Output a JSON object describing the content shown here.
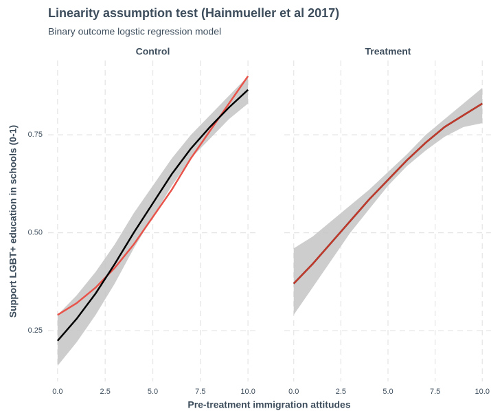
{
  "title": "Linearity assumption test (Hainmueller et al 2017)",
  "subtitle": "Binary outcome logstic regression model",
  "xlabel": "Pre-treatment immigration attitudes",
  "ylabel": "Support LGBT+ education in schools (0-1)",
  "chart_data": [
    {
      "type": "line",
      "title": "Control",
      "x": [
        0,
        1,
        2,
        3,
        4,
        5,
        6,
        7,
        8,
        9,
        10
      ],
      "band": {
        "color": "#c4c4c4",
        "lower": [
          0.16,
          0.22,
          0.29,
          0.37,
          0.46,
          0.54,
          0.62,
          0.69,
          0.74,
          0.79,
          0.83
        ],
        "upper": [
          0.29,
          0.34,
          0.4,
          0.47,
          0.55,
          0.62,
          0.69,
          0.75,
          0.8,
          0.85,
          0.9
        ]
      },
      "series": [
        {
          "color": "#e8534a",
          "values": [
            0.29,
            0.32,
            0.36,
            0.41,
            0.47,
            0.54,
            0.61,
            0.69,
            0.76,
            0.83,
            0.9
          ]
        },
        {
          "color": "#000000",
          "values": [
            0.224,
            0.28,
            0.345,
            0.42,
            0.5,
            0.575,
            0.65,
            0.715,
            0.77,
            0.82,
            0.865
          ]
        }
      ],
      "xlim": [
        -0.5,
        10.5
      ],
      "xticks": [
        {
          "value": 0,
          "label": "0.0"
        },
        2.5,
        {
          "value": 5,
          "label": "5.0"
        },
        7.5,
        {
          "value": 10,
          "label": "10.0"
        }
      ],
      "ylim": [
        0.12,
        0.94
      ],
      "yticks": [
        0.25,
        {
          "value": 0.5,
          "label": "0.50"
        },
        0.75
      ],
      "grid": true
    },
    {
      "type": "line",
      "title": "Treatment",
      "x": [
        0,
        1,
        2,
        3,
        4,
        5,
        6,
        7,
        8,
        9,
        10
      ],
      "band": {
        "color": "#c4c4c4",
        "lower": [
          0.29,
          0.36,
          0.43,
          0.5,
          0.56,
          0.62,
          0.67,
          0.71,
          0.745,
          0.77,
          0.78
        ],
        "upper": [
          0.46,
          0.49,
          0.53,
          0.57,
          0.61,
          0.655,
          0.7,
          0.75,
          0.79,
          0.83,
          0.87
        ]
      },
      "series": [
        {
          "color": "#000000",
          "values": [
            0.37,
            0.42,
            0.475,
            0.53,
            0.585,
            0.635,
            0.685,
            0.73,
            0.77,
            0.8,
            0.83
          ]
        },
        {
          "color": "#c0392b",
          "values": [
            0.37,
            0.42,
            0.475,
            0.53,
            0.585,
            0.635,
            0.685,
            0.73,
            0.77,
            0.8,
            0.83
          ]
        }
      ],
      "xlim": [
        -0.5,
        10.5
      ],
      "xticks": [
        {
          "value": 0,
          "label": "0.0"
        },
        2.5,
        {
          "value": 5,
          "label": "5.0"
        },
        7.5,
        {
          "value": 10,
          "label": "10.0"
        }
      ],
      "grid": true
    }
  ]
}
